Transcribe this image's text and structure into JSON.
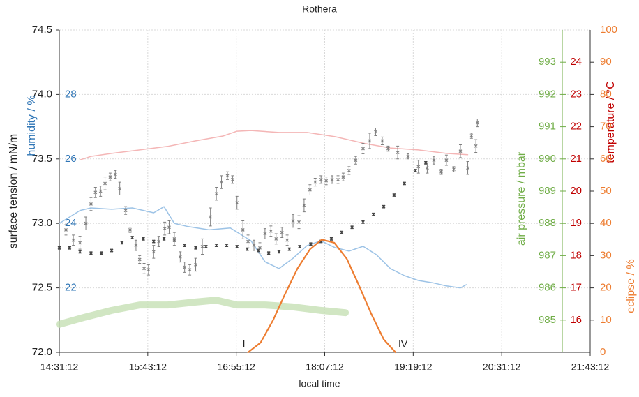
{
  "chart_data": {
    "type": "scatter",
    "title": "Rothera",
    "xlabel": "local time",
    "ylabel": "surface tension / mN/m",
    "xlim": [
      14.52,
      21.72
    ],
    "xticks": [
      {
        "value": 14.52,
        "label": "14:31:12"
      },
      {
        "value": 15.72,
        "label": "15:43:12"
      },
      {
        "value": 16.92,
        "label": "16:55:12"
      },
      {
        "value": 18.12,
        "label": "18:07:12"
      },
      {
        "value": 19.32,
        "label": "19:19:12"
      },
      {
        "value": 20.52,
        "label": "20:31:12"
      },
      {
        "value": 21.72,
        "label": "21:43:12"
      }
    ],
    "ylim": [
      72.0,
      74.5
    ],
    "yticks": [
      {
        "value": 72.0,
        "label": "72.0"
      },
      72.5,
      {
        "value": 73.0,
        "label": "73.0"
      },
      73.5,
      {
        "value": 74.0,
        "label": "74.0"
      },
      74.5
    ],
    "grid": true,
    "axes": [
      {
        "label": "humidity / %",
        "color": "#2e75b6",
        "lim": [
          20,
          30
        ],
        "ticks": [
          22,
          24,
          26,
          28
        ]
      },
      {
        "label": "air pressure / mbar",
        "color": "#70ad47",
        "lim": [
          984,
          994
        ],
        "ticks": [
          985,
          986,
          987,
          988,
          989,
          990,
          991,
          992,
          993
        ]
      },
      {
        "label": "temperature / °C",
        "color": "#c00000",
        "lim": [
          15,
          25
        ],
        "ticks": [
          16,
          17,
          18,
          19,
          20,
          21,
          22,
          23,
          24
        ]
      },
      {
        "label": "eclipse / %",
        "color": "#ed7d31",
        "lim": [
          0,
          100
        ],
        "ticks": [
          0,
          10,
          20,
          30,
          40,
          50,
          60,
          70,
          80,
          90,
          100
        ]
      }
    ],
    "annotations": [
      "I",
      "IV"
    ],
    "series": [
      {
        "type": "line",
        "axis": "y3",
        "color": "#c5e0b4",
        "x": [
          14.52,
          14.85,
          15.23,
          15.61,
          15.99,
          16.37,
          16.65,
          16.93,
          17.31,
          17.69,
          18.07,
          18.4
        ],
        "values": [
          984.87,
          985.08,
          985.3,
          985.47,
          985.47,
          985.56,
          985.62,
          985.47,
          985.47,
          985.41,
          985.3,
          985.23
        ]
      },
      {
        "type": "line",
        "axis": "y4",
        "color": "#f4b6b6",
        "x": [
          14.8,
          14.95,
          15.23,
          15.61,
          15.99,
          16.37,
          16.74,
          16.93,
          17.12,
          17.5,
          17.88,
          18.26,
          18.64,
          19.01,
          19.39,
          19.77,
          20.06
        ],
        "values": [
          20.97,
          21.08,
          21.17,
          21.28,
          21.39,
          21.56,
          21.71,
          21.86,
          21.88,
          21.82,
          21.82,
          21.69,
          21.49,
          21.34,
          21.28,
          21.17,
          21.13
        ]
      },
      {
        "type": "line",
        "axis": "y2",
        "color": "#9dc3e6",
        "x": [
          14.52,
          14.66,
          14.8,
          14.95,
          15.23,
          15.51,
          15.8,
          15.94,
          16.08,
          16.27,
          16.55,
          16.84,
          17.12,
          17.31,
          17.5,
          17.69,
          17.88,
          18.07,
          18.26,
          18.45,
          18.64,
          18.82,
          19.01,
          19.2,
          19.39,
          19.58,
          19.77,
          19.96,
          20.04
        ],
        "values": [
          24.0,
          24.2,
          24.4,
          24.48,
          24.44,
          24.48,
          24.33,
          24.52,
          24.0,
          23.9,
          23.8,
          23.86,
          23.46,
          22.81,
          22.6,
          22.92,
          23.31,
          23.46,
          23.25,
          23.14,
          23.29,
          23.03,
          22.6,
          22.38,
          22.23,
          22.16,
          22.06,
          22.0,
          22.1
        ]
      },
      {
        "type": "scatter",
        "color": "#444444",
        "x": [
          14.52,
          14.66,
          14.8,
          14.95,
          15.09,
          15.23,
          15.37,
          15.51,
          15.66,
          15.8,
          15.94,
          16.08,
          16.22,
          16.37,
          16.51,
          16.65,
          16.79,
          16.93,
          17.07,
          17.22,
          17.36,
          17.5,
          17.64,
          17.78,
          17.93,
          18.07,
          18.21,
          18.35,
          18.49,
          18.64,
          18.78,
          18.92,
          19.06,
          19.2,
          19.35,
          19.49
        ],
        "values": [
          72.81,
          72.81,
          72.78,
          72.77,
          72.77,
          72.79,
          72.85,
          72.89,
          72.88,
          72.86,
          72.88,
          72.87,
          72.83,
          72.81,
          72.82,
          72.83,
          72.83,
          72.82,
          72.8,
          72.79,
          72.77,
          72.78,
          72.8,
          72.82,
          72.84,
          72.86,
          72.88,
          72.93,
          72.97,
          73.01,
          73.07,
          73.13,
          73.22,
          73.31,
          73.41,
          73.47
        ],
        "errors": [
          0.01,
          0.01,
          0.01,
          0.01,
          0.01,
          0.01,
          0.01,
          0.01,
          0.01,
          0.01,
          0.01,
          0.01,
          0.01,
          0.01,
          0.01,
          0.01,
          0.01,
          0.01,
          0.01,
          0.01,
          0.01,
          0.01,
          0.01,
          0.01,
          0.01,
          0.01,
          0.01,
          0.01,
          0.01,
          0.01,
          0.01,
          0.01,
          0.01,
          0.01,
          0.01,
          0.01
        ]
      },
      {
        "type": "scatter",
        "color": "#7f7f7f",
        "x": [
          14.61,
          14.71,
          14.8,
          14.88,
          14.95,
          15.01,
          15.08,
          15.14,
          15.21,
          15.28,
          15.34,
          15.42,
          15.48,
          15.56,
          15.61,
          15.67,
          15.73,
          15.8,
          15.87,
          15.95,
          16.01,
          16.08,
          16.16,
          16.22,
          16.29,
          16.37,
          16.46,
          16.57,
          16.65,
          16.72,
          16.8,
          16.87,
          16.93,
          17.01,
          17.08,
          17.16,
          17.24,
          17.31,
          17.39,
          17.46,
          17.54,
          17.61,
          17.69,
          17.77,
          17.84,
          17.92,
          17.99,
          18.07,
          18.14,
          18.22,
          18.3,
          18.37,
          18.45,
          18.54,
          18.64,
          18.73,
          18.81,
          18.9,
          18.98,
          19.11,
          19.25,
          19.39,
          19.51,
          19.6,
          19.7,
          19.77,
          19.87,
          19.96,
          20.06,
          20.11,
          20.17,
          20.19
        ],
        "values": [
          72.95,
          72.87,
          72.85,
          73.0,
          73.15,
          73.24,
          73.25,
          73.31,
          73.36,
          73.38,
          73.27,
          73.1,
          72.95,
          72.83,
          72.72,
          72.65,
          72.64,
          72.78,
          72.86,
          72.96,
          72.97,
          72.88,
          72.74,
          72.66,
          72.64,
          72.68,
          72.82,
          73.05,
          73.23,
          73.32,
          73.37,
          73.34,
          73.16,
          72.95,
          72.86,
          72.83,
          72.81,
          72.92,
          72.94,
          72.88,
          72.93,
          72.87,
          73.02,
          73.01,
          73.14,
          73.26,
          73.32,
          73.34,
          73.33,
          73.34,
          73.34,
          73.36,
          73.41,
          73.49,
          73.58,
          73.64,
          73.71,
          73.64,
          73.58,
          73.55,
          73.52,
          73.44,
          73.43,
          73.49,
          73.4,
          73.49,
          73.42,
          73.56,
          73.43,
          73.68,
          73.6,
          73.78
        ],
        "errors": [
          0.04,
          0.04,
          0.05,
          0.05,
          0.05,
          0.04,
          0.04,
          0.05,
          0.03,
          0.03,
          0.05,
          0.03,
          0.02,
          0.04,
          0.03,
          0.04,
          0.04,
          0.05,
          0.04,
          0.05,
          0.05,
          0.05,
          0.04,
          0.04,
          0.04,
          0.05,
          0.06,
          0.07,
          0.05,
          0.05,
          0.03,
          0.03,
          0.05,
          0.07,
          0.05,
          0.04,
          0.04,
          0.04,
          0.04,
          0.04,
          0.04,
          0.04,
          0.05,
          0.05,
          0.05,
          0.04,
          0.03,
          0.03,
          0.03,
          0.03,
          0.03,
          0.03,
          0.03,
          0.03,
          0.04,
          0.06,
          0.03,
          0.03,
          0.02,
          0.05,
          0.02,
          0.05,
          0.04,
          0.03,
          0.02,
          0.04,
          0.02,
          0.05,
          0.05,
          0.02,
          0.05,
          0.03
        ]
      },
      {
        "type": "line",
        "axis": "y5",
        "color": "#ed7d31",
        "x": [
          17.08,
          17.25,
          17.42,
          17.58,
          17.75,
          17.92,
          18.08,
          18.25,
          18.42,
          18.58,
          18.75,
          18.92,
          19.08
        ],
        "values": [
          0,
          3,
          10,
          18,
          26,
          32,
          35,
          34,
          29,
          21,
          12,
          4,
          0
        ]
      }
    ]
  }
}
